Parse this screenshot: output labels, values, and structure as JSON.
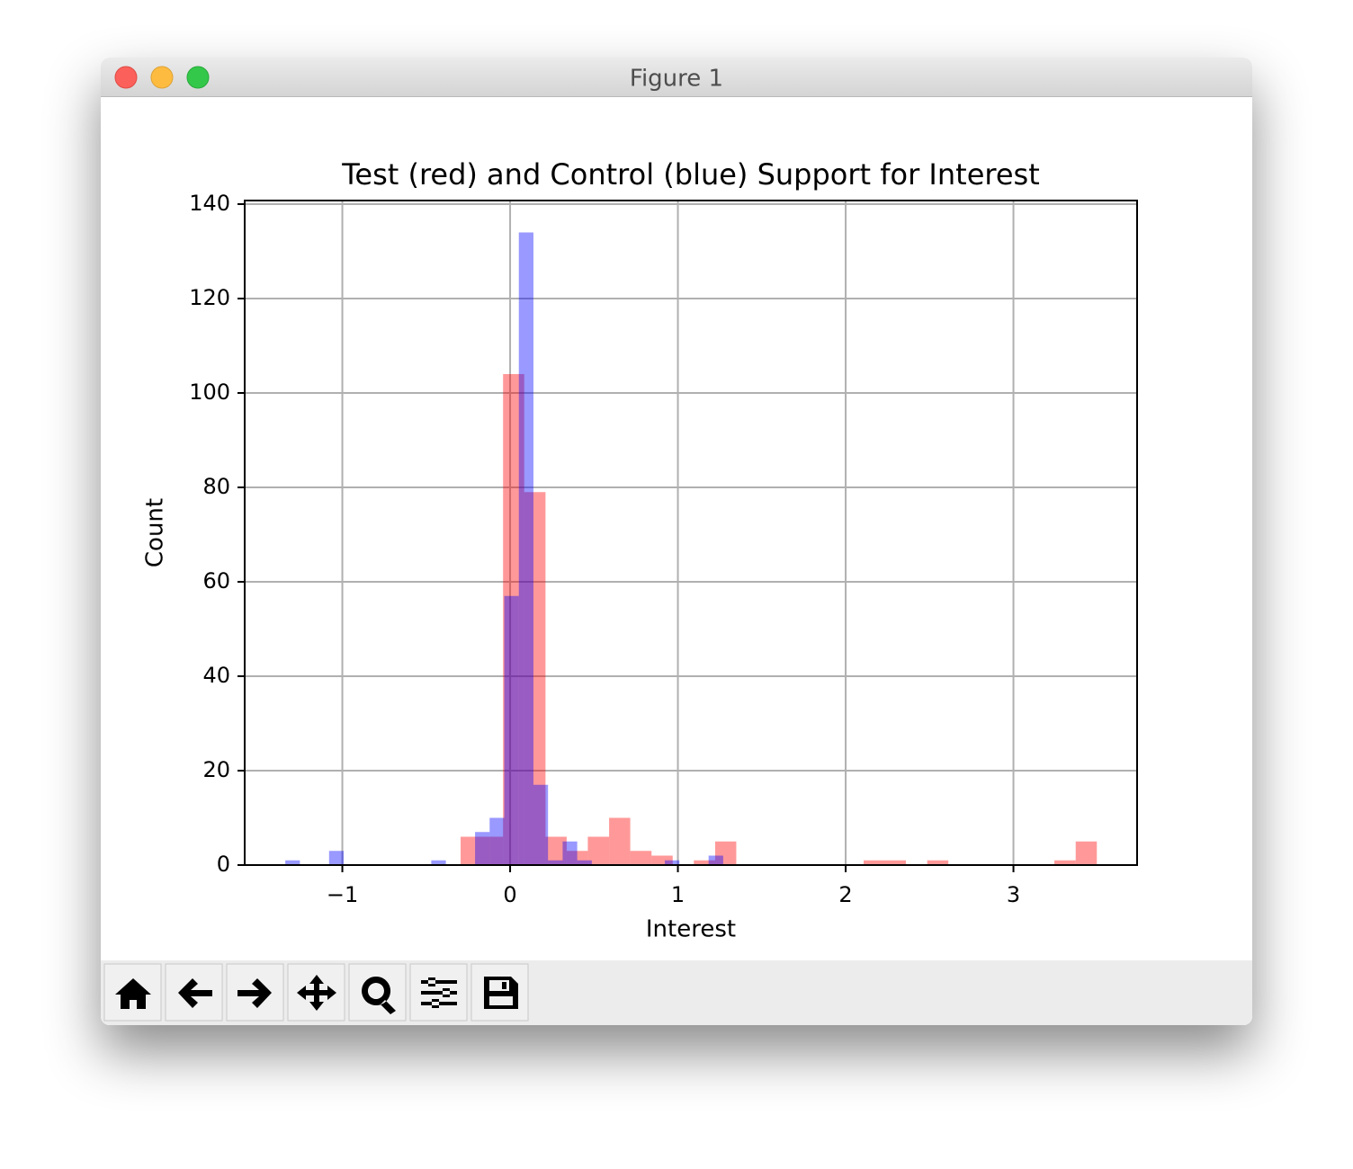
{
  "window": {
    "title": "Figure 1"
  },
  "chart_data": {
    "type": "histogram",
    "title": "Test (red) and Control (blue) Support for Interest",
    "xlabel": "Interest",
    "ylabel": "Count",
    "xlim": [
      -1.582,
      3.737
    ],
    "ylim": [
      0,
      140.76
    ],
    "xticks": [
      {
        "value": -1,
        "label": "−1"
      },
      0,
      1,
      2,
      3
    ],
    "yticks": [
      0,
      20,
      40,
      60,
      80,
      100,
      120,
      140
    ],
    "grid": true,
    "alpha": 0.4,
    "series": [
      {
        "name": "Test",
        "color": "#ff0000",
        "bins": [
          -0.295,
          -0.169,
          -0.042,
          0.084,
          0.211,
          0.337,
          0.463,
          0.59,
          0.716,
          0.843,
          0.969,
          1.095,
          1.222,
          1.348,
          1.475,
          1.601,
          1.727,
          1.854,
          1.98,
          2.107,
          2.233,
          2.359,
          2.486,
          2.612,
          2.739,
          2.865,
          2.991,
          3.118,
          3.244,
          3.371,
          3.497
        ],
        "values": [
          6,
          6,
          104,
          79,
          6,
          3,
          6,
          10,
          3,
          2,
          0,
          1,
          5,
          0,
          0,
          0,
          0,
          0,
          0,
          1,
          1,
          0,
          1,
          0,
          0,
          0,
          0,
          0,
          1,
          5
        ]
      },
      {
        "name": "Control",
        "color": "#0000ff",
        "bins": [
          -1.34,
          -1.253,
          -1.166,
          -1.079,
          -0.992,
          -0.905,
          -0.818,
          -0.731,
          -0.644,
          -0.557,
          -0.47,
          -0.383,
          -0.296,
          -0.209,
          -0.122,
          -0.035,
          0.052,
          0.139,
          0.226,
          0.313,
          0.4,
          0.487,
          0.574,
          0.661,
          0.748,
          0.835,
          0.922,
          1.009,
          1.096,
          1.183,
          1.27
        ],
        "values": [
          1,
          0,
          0,
          3,
          0,
          0,
          0,
          0,
          0,
          0,
          1,
          0,
          0,
          7,
          10,
          57,
          134,
          17,
          1,
          5,
          1,
          0,
          0,
          0,
          0,
          0,
          1,
          0,
          0,
          2
        ]
      }
    ]
  }
}
